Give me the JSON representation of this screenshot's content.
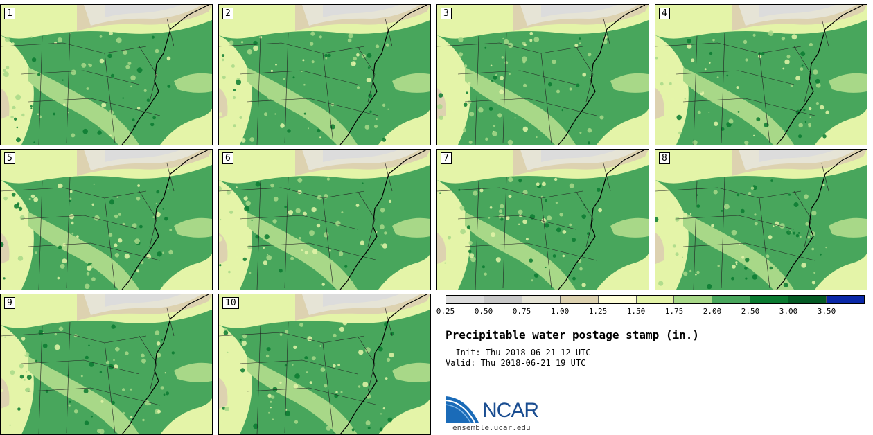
{
  "panels": [
    {
      "label": "1"
    },
    {
      "label": "2"
    },
    {
      "label": "3"
    },
    {
      "label": "4"
    },
    {
      "label": "5"
    },
    {
      "label": "6"
    },
    {
      "label": "7"
    },
    {
      "label": "8"
    },
    {
      "label": "9"
    },
    {
      "label": "10"
    }
  ],
  "legend": {
    "colors": [
      "#dcdcdc",
      "#c8c8c8",
      "#e6e4d6",
      "#ddd2b0",
      "#fefed8",
      "#e4f4a8",
      "#a8d888",
      "#48a65c",
      "#0a7a30",
      "#045a24",
      "#0a28a8"
    ],
    "ticks": [
      "0.25",
      "0.50",
      "0.75",
      "1.00",
      "1.25",
      "1.50",
      "1.75",
      "2.00",
      "2.50",
      "3.00",
      "3.50"
    ]
  },
  "title": "Precipitable water postage stamp (in.)",
  "init_line": "  Init: Thu 2018-06-21 12 UTC",
  "valid_line": "Valid: Thu 2018-06-21 19 UTC",
  "logo": {
    "text": "NCAR",
    "url": "ensemble.ucar.edu"
  }
}
